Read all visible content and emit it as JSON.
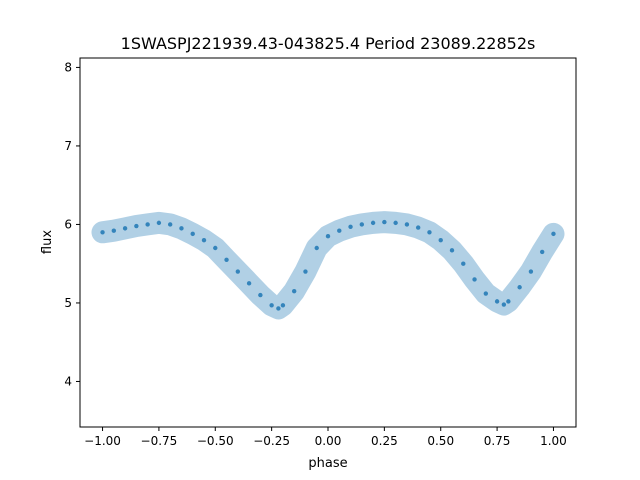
{
  "chart_data": {
    "type": "scatter",
    "title": "1SWASPJ221939.43-043825.4 Period 23089.22852s",
    "xlabel": "phase",
    "ylabel": "flux",
    "xlim": [
      -1.1,
      1.1
    ],
    "ylim": [
      3.42,
      8.12
    ],
    "xticks": [
      -1.0,
      -0.75,
      -0.5,
      -0.25,
      0.0,
      0.25,
      0.5,
      0.75,
      1.0
    ],
    "xtick_labels": [
      "−1.00",
      "−0.75",
      "−0.50",
      "−0.25",
      "0.00",
      "0.25",
      "0.50",
      "0.75",
      "1.00"
    ],
    "yticks": [
      4,
      5,
      6,
      7,
      8
    ],
    "ytick_labels": [
      "4",
      "5",
      "6",
      "7",
      "8"
    ],
    "grid": false,
    "series": [
      {
        "marker_color": "#1f77b4",
        "x": [
          -1.0,
          -0.95,
          -0.9,
          -0.85,
          -0.8,
          -0.75,
          -0.7,
          -0.65,
          -0.6,
          -0.55,
          -0.5,
          -0.45,
          -0.4,
          -0.35,
          -0.3,
          -0.25,
          -0.22,
          -0.2,
          -0.15,
          -0.1,
          -0.05,
          0.0,
          0.05,
          0.1,
          0.15,
          0.2,
          0.25,
          0.3,
          0.35,
          0.4,
          0.45,
          0.5,
          0.55,
          0.6,
          0.65,
          0.7,
          0.75,
          0.78,
          0.8,
          0.85,
          0.9,
          0.95,
          1.0
        ],
        "y": [
          5.9,
          5.92,
          5.95,
          5.98,
          6.0,
          6.02,
          6.0,
          5.95,
          5.88,
          5.8,
          5.7,
          5.55,
          5.4,
          5.25,
          5.1,
          4.97,
          4.93,
          4.97,
          5.15,
          5.4,
          5.7,
          5.85,
          5.92,
          5.97,
          6.0,
          6.02,
          6.03,
          6.02,
          6.0,
          5.96,
          5.9,
          5.8,
          5.67,
          5.5,
          5.3,
          5.12,
          5.02,
          4.98,
          5.02,
          5.2,
          5.4,
          5.65,
          5.88
        ]
      }
    ]
  }
}
